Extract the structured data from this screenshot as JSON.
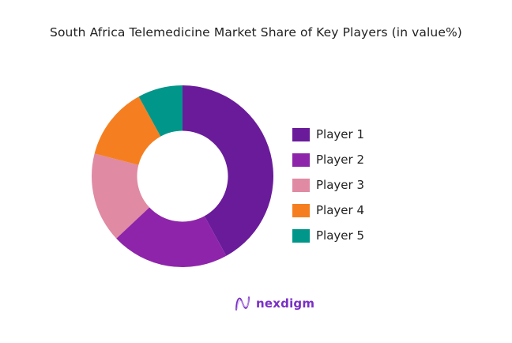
{
  "title": "South Africa Telemedicine Market Share of Key Players (in value%)",
  "brand": {
    "name": "nexdigm",
    "icon": "nexdigm-wave-logo-icon",
    "color": "#7a2fc6"
  },
  "chart_data": {
    "type": "pie",
    "variant": "donut",
    "title": "South Africa Telemedicine Market Share of Key Players (in value%)",
    "categories": [
      "Player 1",
      "Player 2",
      "Player 3",
      "Player 4",
      "Player 5"
    ],
    "values": [
      42,
      21,
      16,
      13,
      8
    ],
    "unit": "%",
    "colors": [
      "#6a1b9a",
      "#8e24aa",
      "#e08aa3",
      "#f57f20",
      "#00968a"
    ],
    "legend_position": "right",
    "start_angle": 0,
    "direction": "clockwise",
    "inner_radius_ratio": 0.5
  },
  "legend": [
    {
      "label": "Player 1",
      "color": "#6a1b9a"
    },
    {
      "label": "Player 2",
      "color": "#8e24aa"
    },
    {
      "label": "Player 3",
      "color": "#e08aa3"
    },
    {
      "label": "Player 4",
      "color": "#f57f20"
    },
    {
      "label": "Player 5",
      "color": "#00968a"
    }
  ]
}
